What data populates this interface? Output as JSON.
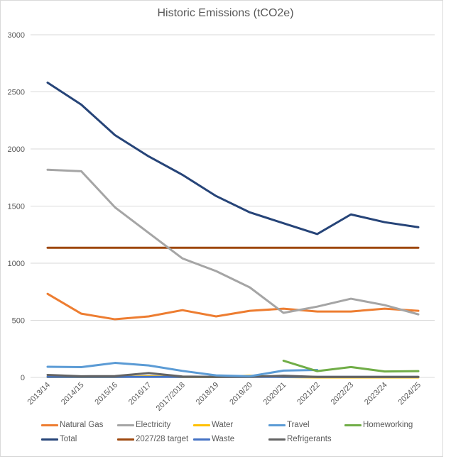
{
  "chart_data": {
    "type": "line",
    "title": "Historic Emissions (tCO2e)",
    "xlabel": "",
    "ylabel": "",
    "ylim": [
      0,
      3000
    ],
    "yticks": [
      0,
      500,
      1000,
      1500,
      2000,
      2500,
      3000
    ],
    "grid": true,
    "legend_position": "bottom",
    "categories": [
      "2013/14",
      "2014/15",
      "2015/16",
      "2016/17",
      "2017/2018",
      "2018/19",
      "2019/20",
      "2020/21",
      "2021/22",
      "2022/23",
      "2023/24",
      "2024/25"
    ],
    "series": [
      {
        "name": "Natural Gas",
        "color": "#ed7d31",
        "values": [
          732,
          558,
          509,
          534,
          589,
          534,
          583,
          602,
          577,
          577,
          602,
          583
        ]
      },
      {
        "name": "Electricity",
        "color": "#a5a5a5",
        "values": [
          1818,
          1805,
          1489,
          1265,
          1042,
          931,
          788,
          565,
          620,
          689,
          633,
          552
        ]
      },
      {
        "name": "Water",
        "color": "#ffc000",
        "values": [
          3,
          3,
          3,
          10,
          3,
          3,
          15,
          3,
          0,
          0,
          0,
          0
        ]
      },
      {
        "name": "Travel",
        "color": "#5b9bd5",
        "values": [
          93,
          90,
          127,
          105,
          57,
          18,
          10,
          60,
          65,
          null,
          null,
          null
        ]
      },
      {
        "name": "Homeworking",
        "color": "#70ad47",
        "values": [
          null,
          null,
          null,
          null,
          null,
          null,
          null,
          146,
          55,
          91,
          52,
          55
        ]
      },
      {
        "name": "Total",
        "color": "#264478",
        "values": [
          2581,
          2388,
          2121,
          1935,
          1774,
          1588,
          1445,
          1350,
          1255,
          1427,
          1359,
          1315
        ]
      },
      {
        "name": "2027/28 target",
        "color": "#9e480e",
        "values": [
          1135,
          1135,
          1135,
          1135,
          1135,
          1135,
          1135,
          1135,
          1135,
          1135,
          1135,
          1135
        ]
      },
      {
        "name": "Waste",
        "color": "#4472c4",
        "values": [
          5,
          5,
          5,
          5,
          5,
          5,
          5,
          5,
          5,
          5,
          5,
          5
        ]
      },
      {
        "name": "Refrigerants",
        "color": "#636363",
        "values": [
          22,
          10,
          12,
          38,
          8,
          5,
          5,
          15,
          5,
          5,
          5,
          5
        ]
      }
    ]
  }
}
